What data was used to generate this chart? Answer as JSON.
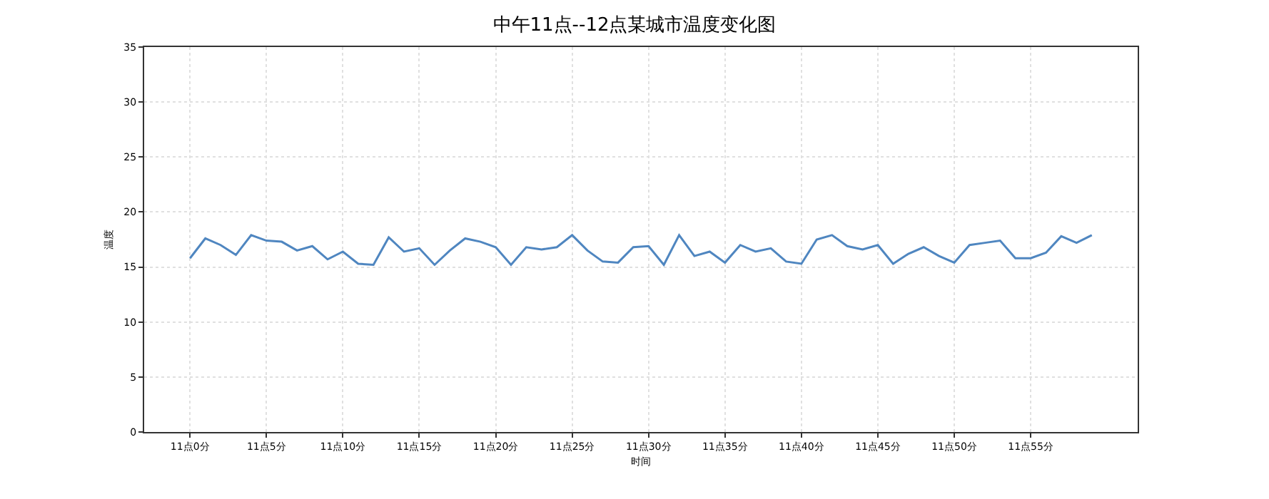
{
  "chart_data": {
    "type": "line",
    "title": "中午11点--12点某城市温度变化图",
    "xlabel": "时间",
    "ylabel": "温度",
    "categories": [
      "11点0分",
      null,
      null,
      null,
      null,
      "11点5分",
      null,
      null,
      null,
      null,
      "11点10分",
      null,
      null,
      null,
      null,
      "11点15分",
      null,
      null,
      null,
      null,
      "11点20分",
      null,
      null,
      null,
      null,
      "11点25分",
      null,
      null,
      null,
      null,
      "11点30分",
      null,
      null,
      null,
      null,
      "11点35分",
      null,
      null,
      null,
      null,
      "11点40分",
      null,
      null,
      null,
      null,
      "11点45分",
      null,
      null,
      null,
      null,
      "11点50分",
      null,
      null,
      null,
      null,
      "11点55分",
      null,
      null,
      null,
      null
    ],
    "series": [
      {
        "color": "#4f86c0",
        "values": [
          15.8,
          17.6,
          17.0,
          16.1,
          17.9,
          17.4,
          17.3,
          16.5,
          16.9,
          15.7,
          16.4,
          15.3,
          15.2,
          17.7,
          16.4,
          16.7,
          15.2,
          16.5,
          17.6,
          17.3,
          16.8,
          15.2,
          16.8,
          16.6,
          16.8,
          17.9,
          16.5,
          15.5,
          15.4,
          16.8,
          16.9,
          15.2,
          17.9,
          16.0,
          16.4,
          15.4,
          17.0,
          16.4,
          16.7,
          15.5,
          15.3,
          17.5,
          17.9,
          16.9,
          16.6,
          17.0,
          15.3,
          16.2,
          16.8,
          16.0,
          15.4,
          17.0,
          17.2,
          17.4,
          15.8,
          15.8,
          16.3,
          17.8,
          17.2,
          17.9
        ]
      }
    ],
    "ylim": [
      0,
      35
    ],
    "yticks": [
      0,
      5,
      10,
      15,
      20,
      25,
      30,
      35
    ],
    "grid": true,
    "line_style": "solid",
    "marker": "none"
  }
}
